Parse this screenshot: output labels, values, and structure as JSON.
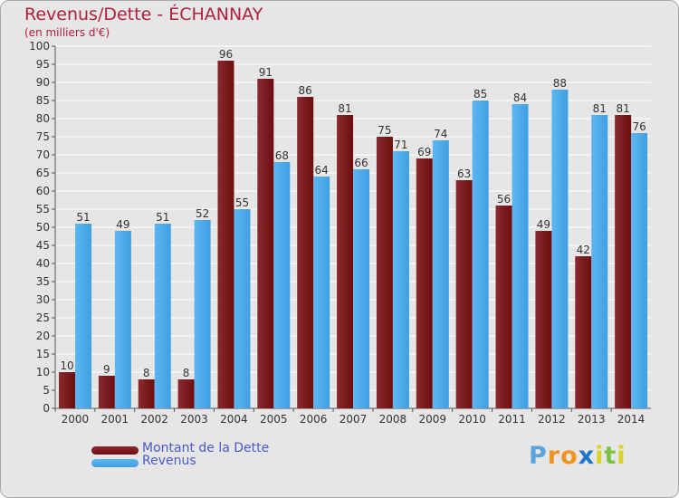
{
  "colors": {
    "debt": "#6e0d10",
    "debt_light": "#8a2a2e",
    "revenue": "#3f9fe2",
    "revenue_light": "#5eb6f2",
    "grid": "#ffffff",
    "plot_bg": "#e6e6e6",
    "title": "#b0203a",
    "legend_text": "#4a5ac8"
  },
  "logo": {
    "letters": [
      "P",
      "r",
      "o",
      "x",
      "i",
      "t",
      "i"
    ],
    "colors": [
      "#5aa3dc",
      "#f29220",
      "#f29220",
      "#1f76c8",
      "#d8d22a",
      "#7cc244",
      "#d8d22a"
    ]
  },
  "chart_data": {
    "type": "bar",
    "title": "Revenus/Dette - ÉCHANNAY",
    "subtitle": "(en milliers d'€)",
    "xlabel": "",
    "ylabel": "",
    "ylim": [
      0,
      100
    ],
    "ytick_step": 5,
    "grid": true,
    "legend_position": "bottom-left",
    "categories": [
      "2000",
      "2001",
      "2002",
      "2003",
      "2004",
      "2005",
      "2006",
      "2007",
      "2008",
      "2009",
      "2010",
      "2011",
      "2012",
      "2013",
      "2014"
    ],
    "series": [
      {
        "name": "Montant de la Dette",
        "color_key": "debt",
        "values": [
          10,
          9,
          8,
          8,
          96,
          91,
          86,
          81,
          75,
          69,
          63,
          56,
          49,
          42,
          81
        ]
      },
      {
        "name": "Revenus",
        "color_key": "revenue",
        "values": [
          51,
          49,
          51,
          52,
          55,
          68,
          64,
          66,
          71,
          74,
          85,
          84,
          88,
          81,
          76
        ]
      }
    ]
  }
}
